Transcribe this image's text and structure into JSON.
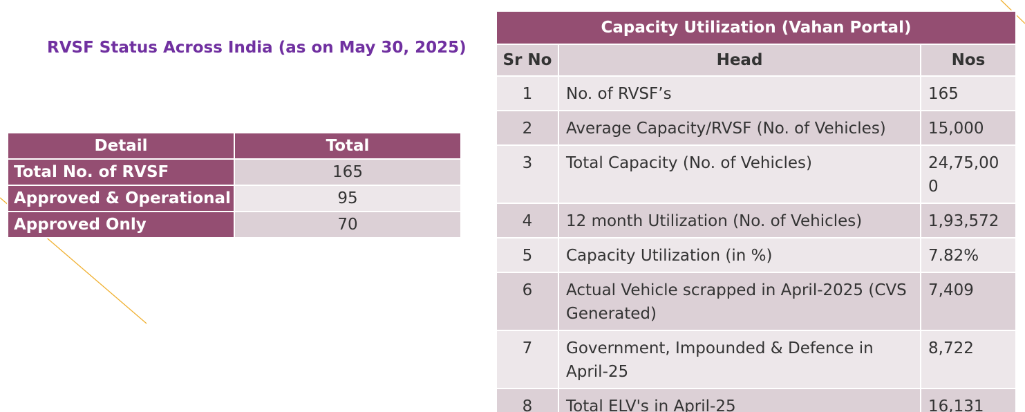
{
  "left": {
    "title": "RVSF Status Across India (as on May 30, 2025)",
    "table": {
      "headers": [
        "Detail",
        "Total"
      ],
      "rows": [
        {
          "detail": "Total No. of RVSF",
          "total": "165"
        },
        {
          "detail": "Approved & Operational",
          "total": "95"
        },
        {
          "detail": "Approved Only",
          "total": "70"
        }
      ]
    }
  },
  "right": {
    "title": "Capacity Utilization (Vahan Portal)",
    "headers": [
      "Sr No",
      "Head",
      "Nos"
    ],
    "rows": [
      {
        "sr": "1",
        "head": "No. of RVSF’s",
        "nos": "165"
      },
      {
        "sr": "2",
        "head": "Average Capacity/RVSF (No. of Vehicles)",
        "nos": "15,000"
      },
      {
        "sr": "3",
        "head": "Total Capacity (No. of Vehicles)",
        "nos": "24,75,000"
      },
      {
        "sr": "4",
        "head": "12 month Utilization (No. of Vehicles)",
        "nos": "1,93,572"
      },
      {
        "sr": "5",
        "head": "Capacity Utilization (in %)",
        "nos": "7.82%"
      },
      {
        "sr": "6",
        "head": "Actual Vehicle scrapped in April-2025 (CVS Generated)",
        "nos": "7,409"
      },
      {
        "sr": "7",
        "head": "Government, Impounded & Defence in April-25",
        "nos": "8,722"
      },
      {
        "sr": "8",
        "head": "Total ELV's in April-25",
        "nos": "16,131"
      }
    ]
  },
  "colors": {
    "header_bg": "#944e72",
    "title_text": "#7030a0",
    "row_dark": "#dcd0d6",
    "row_light": "#ede7ea",
    "accent_line": "#f0b030"
  }
}
